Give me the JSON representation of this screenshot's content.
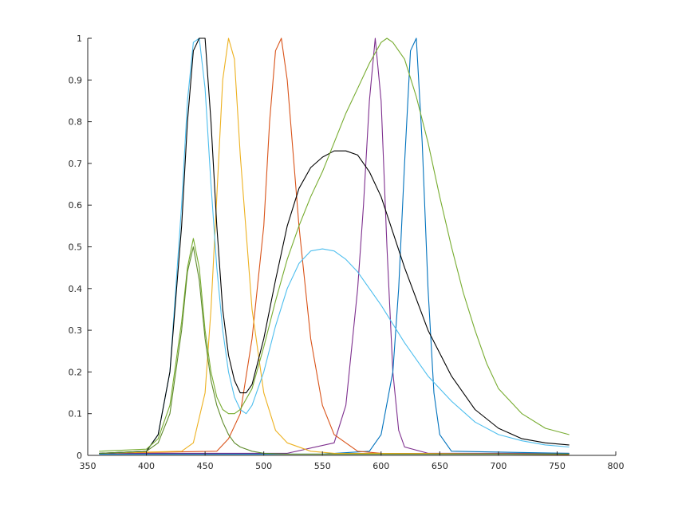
{
  "chart_data": {
    "type": "line",
    "title": "",
    "xlabel": "",
    "ylabel": "",
    "xlim": [
      350,
      800
    ],
    "ylim": [
      0,
      1
    ],
    "grid": false,
    "legend": "none",
    "xticks": [
      350,
      400,
      450,
      500,
      550,
      600,
      650,
      700,
      750,
      800
    ],
    "yticks": [
      0,
      0.1,
      0.2,
      0.3,
      0.4,
      0.5,
      0.6,
      0.7,
      0.8,
      0.9,
      1
    ],
    "xtick_labels": [
      "350",
      "400",
      "450",
      "500",
      "550",
      "600",
      "650",
      "700",
      "750",
      "800"
    ],
    "ytick_labels": [
      "0",
      "0.1",
      "0.2",
      "0.3",
      "0.4",
      "0.5",
      "0.6",
      "0.7",
      "0.8",
      "0.9",
      "1"
    ],
    "series": [
      {
        "color": "#7E2F8E",
        "x": [
          360,
          520,
          560,
          570,
          580,
          585,
          590,
          595,
          600,
          605,
          610,
          615,
          620,
          640,
          760
        ],
        "y": [
          0.005,
          0.005,
          0.03,
          0.12,
          0.4,
          0.6,
          0.85,
          1.0,
          0.85,
          0.5,
          0.2,
          0.06,
          0.02,
          0.005,
          0.005
        ]
      },
      {
        "color": "#0072BD",
        "x": [
          360,
          550,
          590,
          600,
          610,
          615,
          620,
          625,
          630,
          635,
          640,
          645,
          650,
          660,
          760
        ],
        "y": [
          0.003,
          0.003,
          0.01,
          0.05,
          0.2,
          0.4,
          0.7,
          0.97,
          1.0,
          0.75,
          0.4,
          0.15,
          0.05,
          0.01,
          0.005
        ]
      },
      {
        "color": "#D95319",
        "x": [
          360,
          460,
          470,
          480,
          490,
          500,
          505,
          510,
          515,
          520,
          530,
          540,
          550,
          560,
          580,
          600,
          760
        ],
        "y": [
          0.005,
          0.01,
          0.04,
          0.1,
          0.28,
          0.55,
          0.8,
          0.97,
          1.0,
          0.9,
          0.55,
          0.28,
          0.12,
          0.05,
          0.01,
          0.005,
          0.002
        ]
      },
      {
        "color": "#EDB120",
        "x": [
          360,
          430,
          440,
          450,
          455,
          460,
          465,
          470,
          475,
          480,
          490,
          500,
          510,
          520,
          540,
          560,
          760
        ],
        "y": [
          0.005,
          0.01,
          0.03,
          0.15,
          0.35,
          0.62,
          0.9,
          1.0,
          0.95,
          0.72,
          0.35,
          0.15,
          0.06,
          0.03,
          0.01,
          0.005,
          0.003
        ]
      },
      {
        "color": "#4DBEEE",
        "x": [
          360,
          400,
          410,
          420,
          430,
          435,
          440,
          445,
          450,
          455,
          460,
          465,
          470,
          475,
          480,
          485,
          490,
          500,
          510,
          520,
          530,
          540,
          550,
          560,
          570,
          580,
          590,
          600,
          620,
          640,
          660,
          680,
          700,
          720,
          740,
          760
        ],
        "y": [
          0.005,
          0.01,
          0.05,
          0.2,
          0.6,
          0.85,
          0.99,
          1.0,
          0.88,
          0.65,
          0.45,
          0.3,
          0.2,
          0.14,
          0.11,
          0.1,
          0.12,
          0.2,
          0.31,
          0.4,
          0.46,
          0.49,
          0.495,
          0.49,
          0.47,
          0.44,
          0.4,
          0.36,
          0.27,
          0.19,
          0.13,
          0.08,
          0.05,
          0.035,
          0.025,
          0.02
        ]
      },
      {
        "color": "#000000",
        "x": [
          360,
          400,
          410,
          420,
          430,
          435,
          440,
          445,
          450,
          455,
          460,
          465,
          470,
          475,
          480,
          485,
          490,
          500,
          510,
          520,
          530,
          540,
          550,
          560,
          570,
          580,
          590,
          600,
          620,
          640,
          660,
          680,
          700,
          720,
          740,
          760
        ],
        "y": [
          0.005,
          0.01,
          0.05,
          0.2,
          0.55,
          0.8,
          0.97,
          1.0,
          1.0,
          0.8,
          0.55,
          0.35,
          0.24,
          0.18,
          0.15,
          0.15,
          0.17,
          0.28,
          0.42,
          0.55,
          0.64,
          0.69,
          0.715,
          0.73,
          0.73,
          0.72,
          0.68,
          0.62,
          0.45,
          0.3,
          0.19,
          0.11,
          0.065,
          0.04,
          0.03,
          0.025
        ]
      },
      {
        "color": "#77AC30",
        "x": [
          360,
          400,
          410,
          420,
          430,
          435,
          440,
          445,
          450,
          455,
          460,
          465,
          470,
          475,
          480,
          490,
          500,
          510,
          520,
          530,
          540,
          550,
          560,
          570,
          580,
          590,
          600,
          605,
          610,
          620,
          630,
          640,
          650,
          660,
          670,
          680,
          690,
          700,
          720,
          740,
          760
        ],
        "y": [
          0.01,
          0.015,
          0.04,
          0.12,
          0.32,
          0.45,
          0.52,
          0.45,
          0.3,
          0.2,
          0.14,
          0.11,
          0.1,
          0.1,
          0.11,
          0.16,
          0.26,
          0.37,
          0.47,
          0.55,
          0.62,
          0.68,
          0.75,
          0.82,
          0.88,
          0.94,
          0.99,
          1.0,
          0.99,
          0.95,
          0.86,
          0.75,
          0.62,
          0.5,
          0.39,
          0.3,
          0.22,
          0.16,
          0.1,
          0.065,
          0.05
        ]
      },
      {
        "color": "#5E8A2A",
        "x": [
          360,
          400,
          410,
          420,
          430,
          435,
          440,
          445,
          450,
          455,
          460,
          465,
          470,
          475,
          480,
          490,
          500,
          520,
          540,
          560,
          580,
          600,
          620,
          640,
          660,
          680,
          700,
          720,
          740,
          760
        ],
        "y": [
          0.005,
          0.01,
          0.03,
          0.1,
          0.3,
          0.44,
          0.5,
          0.42,
          0.28,
          0.18,
          0.12,
          0.08,
          0.05,
          0.03,
          0.02,
          0.01,
          0.005,
          0.003,
          0.003,
          0.003,
          0.003,
          0.003,
          0.003,
          0.003,
          0.003,
          0.003,
          0.003,
          0.003,
          0.003,
          0.003
        ]
      }
    ]
  }
}
